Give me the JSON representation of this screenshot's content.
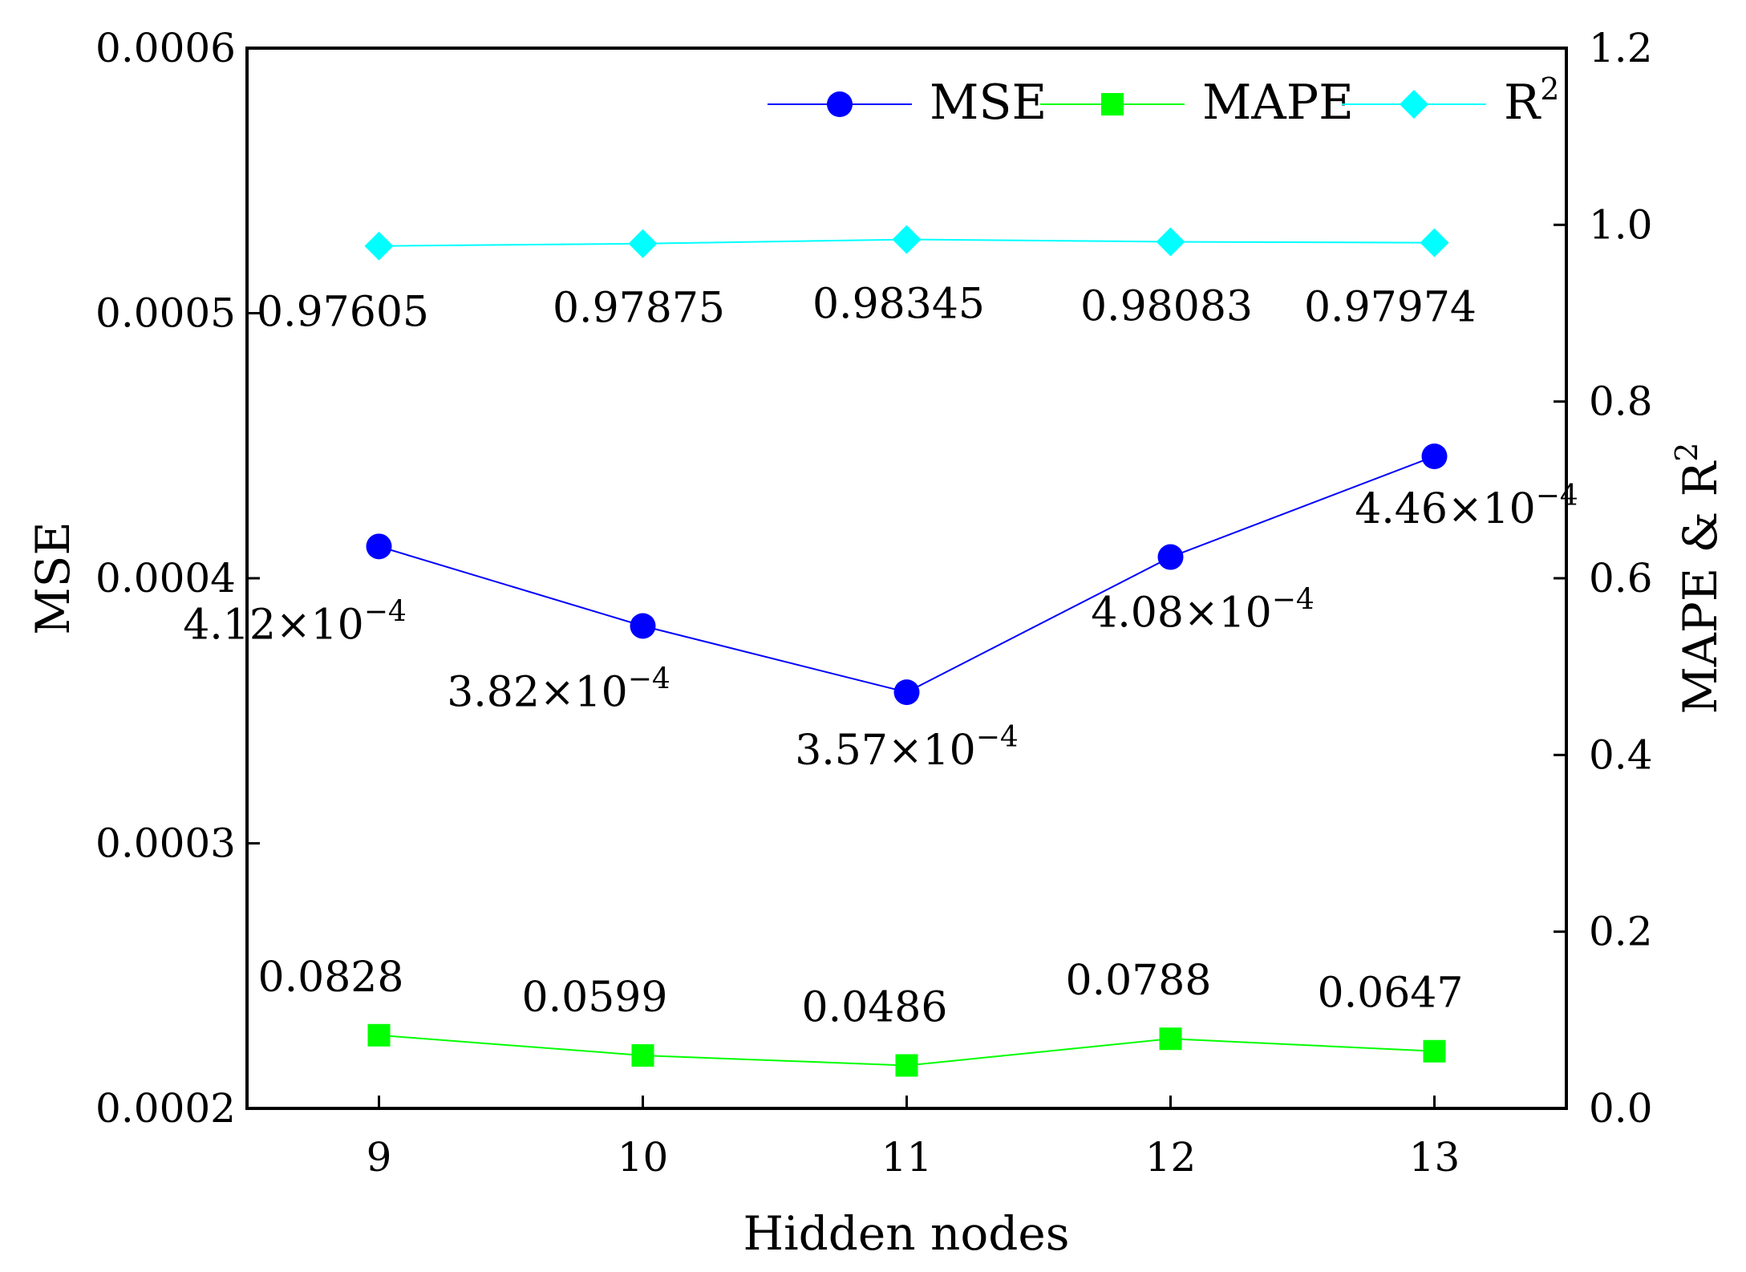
{
  "chart_data": {
    "type": "line",
    "x": [
      9,
      10,
      11,
      12,
      13
    ],
    "xlabel": "Hidden nodes",
    "xticks": [
      "9",
      "10",
      "11",
      "12",
      "13"
    ],
    "xlim": [
      8.5,
      13.5
    ],
    "y_left": {
      "label": "MSE",
      "lim": [
        0.0002,
        0.0006
      ],
      "ticks": [
        "0.0002",
        "0.0003",
        "0.0004",
        "0.0005",
        "0.0006"
      ]
    },
    "y_right": {
      "label": "MAPE & R",
      "label_sup": "2",
      "lim": [
        0.0,
        1.2
      ],
      "ticks": [
        "0.0",
        "0.2",
        "0.4",
        "0.6",
        "0.8",
        "1.0",
        "1.2"
      ]
    },
    "series": [
      {
        "name": "MSE",
        "name_sup": "",
        "axis": "left",
        "color": "#0000ff",
        "marker": "circle",
        "values": [
          0.000412,
          0.000382,
          0.000357,
          0.000408,
          0.000446
        ],
        "labels": [
          "4.12×10",
          "3.82×10",
          "3.57×10",
          "4.08×10",
          "4.46×10"
        ],
        "label_sups": [
          "−4",
          "−4",
          "−4",
          "−4",
          "−4"
        ]
      },
      {
        "name": "MAPE",
        "name_sup": "",
        "axis": "right",
        "color": "#00ff00",
        "marker": "square",
        "values": [
          0.0828,
          0.0599,
          0.0486,
          0.0788,
          0.0647
        ],
        "labels": [
          "0.0828",
          "0.0599",
          "0.0486",
          "0.0788",
          "0.0647"
        ],
        "label_sups": [
          "",
          "",
          "",
          "",
          ""
        ]
      },
      {
        "name": "R",
        "name_sup": "2",
        "axis": "right",
        "color": "#00ffff",
        "marker": "diamond",
        "values": [
          0.97605,
          0.97875,
          0.98345,
          0.98083,
          0.97974
        ],
        "labels": [
          "0.97605",
          "0.97875",
          "0.98345",
          "0.98083",
          "0.97974"
        ],
        "label_sups": [
          "",
          "",
          "",
          "",
          ""
        ]
      }
    ],
    "legend": "top-right",
    "grid": false
  }
}
